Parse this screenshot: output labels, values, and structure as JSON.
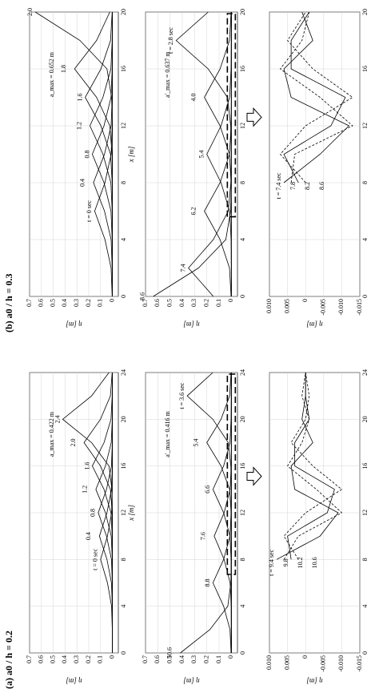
{
  "chart_data": [
    {
      "type": "line",
      "title": "(a) a0 / h = 0.2",
      "xlabel": "x [m]",
      "ylabel": "η [m]",
      "annotation": "a_max = 0.422 m",
      "grid": true,
      "color": "#000000",
      "x": [
        0,
        2,
        4,
        6,
        8,
        10,
        12,
        14,
        16,
        18,
        20,
        22,
        24
      ],
      "xlim": [
        0,
        24
      ],
      "xticks": [
        0,
        4,
        8,
        12,
        16,
        20,
        24
      ],
      "ylim": [
        -0.05,
        0.7
      ],
      "yticks": [
        0,
        0.1,
        0.2,
        0.3,
        0.4,
        0.5,
        0.6,
        0.7
      ],
      "series": [
        {
          "name": "t = 0 sec",
          "values": [
            0,
            0.001,
            0.007,
            0.042,
            0.1,
            0.042,
            0.007,
            0.001,
            0,
            0,
            0,
            0,
            0
          ]
        },
        {
          "name": "0.4",
          "values": [
            0,
            0,
            0.001,
            0.008,
            0.046,
            0.11,
            0.046,
            0.008,
            0.001,
            0,
            0,
            0,
            0
          ]
        },
        {
          "name": "0.8",
          "values": [
            0,
            0,
            0,
            0.001,
            0.008,
            0.05,
            0.12,
            0.05,
            0.008,
            0.001,
            0,
            0,
            0
          ]
        },
        {
          "name": "1.2",
          "values": [
            0,
            0,
            0,
            0,
            0.001,
            0.01,
            0.059,
            0.14,
            0.059,
            0.01,
            0.001,
            0,
            0
          ]
        },
        {
          "name": "1.6",
          "values": [
            0,
            0,
            0,
            0,
            0,
            0.002,
            0.012,
            0.071,
            0.17,
            0.071,
            0.012,
            0.002,
            0
          ]
        },
        {
          "name": "2.0",
          "values": [
            0,
            0,
            0,
            0,
            0,
            0,
            0.002,
            0.017,
            0.101,
            0.24,
            0.101,
            0.017,
            0.002
          ]
        },
        {
          "name": "2.4",
          "values": [
            0,
            0,
            0,
            0,
            0,
            0,
            0,
            0.004,
            0.029,
            0.176,
            0.42,
            0.176,
            0.029
          ]
        }
      ]
    },
    {
      "type": "line",
      "ylabel": "η [m]",
      "annotation": "a'_max = 0.416 m",
      "grid": true,
      "color": "#000000",
      "x": [
        0,
        2,
        4,
        6,
        8,
        10,
        12,
        14,
        16,
        18,
        20,
        22,
        24
      ],
      "xlim": [
        0,
        24
      ],
      "xticks": [
        0,
        4,
        8,
        12,
        16,
        20,
        24
      ],
      "ylim": [
        -0.05,
        0.7
      ],
      "yticks": [
        0,
        0.1,
        0.2,
        0.3,
        0.4,
        0.5,
        0.6,
        0.7
      ],
      "series": [
        {
          "name": "t = 3.6 sec",
          "values": [
            0,
            0,
            0,
            0,
            0,
            0,
            0,
            0,
            0.004,
            0.025,
            0.151,
            0.36,
            0.151
          ]
        },
        {
          "name": "5.4",
          "values": [
            0,
            0,
            0,
            0,
            0,
            0,
            0.002,
            0.014,
            0.084,
            0.2,
            0.084,
            0.014,
            0.002
          ]
        },
        {
          "name": "6.6",
          "values": [
            0,
            0,
            0,
            0,
            0.002,
            0.011,
            0.063,
            0.15,
            0.063,
            0.011,
            0.002,
            0,
            0
          ]
        },
        {
          "name": "7.6",
          "values": [
            0,
            0,
            0.001,
            0.01,
            0.059,
            0.14,
            0.059,
            0.01,
            0.001,
            0,
            0,
            0,
            0
          ]
        },
        {
          "name": "8.8",
          "values": [
            0.002,
            0.011,
            0.063,
            0.15,
            0.063,
            0.011,
            0.002,
            0,
            0,
            0,
            0,
            0,
            0
          ]
        },
        {
          "name": "10.6",
          "values": [
            0.416,
            0.175,
            0.029,
            0.004,
            0,
            0,
            0,
            0,
            0,
            0,
            0,
            0,
            0
          ]
        }
      ]
    },
    {
      "type": "line",
      "ylabel": "η [m]",
      "grid": true,
      "color": "#000000",
      "x": [
        8,
        10,
        12,
        14,
        16,
        18,
        20,
        22,
        24
      ],
      "xlim": [
        0,
        24
      ],
      "xticks": [
        0,
        4,
        8,
        12,
        16,
        20,
        24
      ],
      "ylim": [
        -0.015,
        0.01
      ],
      "yticks": [
        {
          "value": 0.01,
          "label": "0.010"
        },
        0.005,
        0,
        -0.005,
        {
          "value": -0.01,
          "label": "-0.010"
        },
        -0.015
      ],
      "series": [
        {
          "name": "t = 9.4 sec",
          "values": [
            0.008,
            -0.004,
            -0.009,
            0.003,
            0.004,
            -0.002,
            0.001,
            0,
            0
          ]
        },
        {
          "name": "9.8",
          "values": [
            0.006,
            0.002,
            -0.01,
            -0.003,
            0.005,
            0.001,
            -0.001,
            0.001,
            0
          ]
        },
        {
          "name": "10.2",
          "values": [
            0.004,
            0.005,
            -0.006,
            -0.008,
            0.003,
            0.003,
            -0.001,
            0,
            0
          ]
        },
        {
          "name": "10.6",
          "values": [
            0.002,
            0.006,
            0,
            -0.01,
            -0.002,
            0.004,
            0,
            -0.001,
            0
          ]
        }
      ]
    },
    {
      "type": "line",
      "title": "(b) a0 / h = 0.3",
      "xlabel": "x [m]",
      "ylabel": "η [m]",
      "annotation": "a_max = 0.652 m",
      "grid": true,
      "color": "#000000",
      "x": [
        0,
        2,
        4,
        6,
        8,
        10,
        12,
        14,
        16,
        18,
        20
      ],
      "xlim": [
        0,
        20
      ],
      "xticks": [
        0,
        4,
        8,
        12,
        16,
        20
      ],
      "ylim": [
        -0.05,
        0.7
      ],
      "yticks": [
        0,
        0.1,
        0.2,
        0.3,
        0.4,
        0.5,
        0.6,
        0.7
      ],
      "series": [
        {
          "name": "t = 0 sec",
          "values": [
            0.002,
            0.011,
            0.063,
            0.15,
            0.063,
            0.011,
            0.002,
            0,
            0,
            0,
            0
          ]
        },
        {
          "name": "0.4",
          "values": [
            0,
            0.002,
            0.011,
            0.067,
            0.16,
            0.067,
            0.011,
            0.002,
            0,
            0,
            0
          ]
        },
        {
          "name": "0.8",
          "values": [
            0,
            0,
            0.002,
            0.012,
            0.071,
            0.17,
            0.071,
            0.012,
            0.002,
            0,
            0
          ]
        },
        {
          "name": "1.2",
          "values": [
            0,
            0,
            0,
            0.002,
            0.013,
            0.08,
            0.19,
            0.08,
            0.013,
            0.002,
            0
          ]
        },
        {
          "name": "1.6",
          "values": [
            0,
            0,
            0,
            0,
            0.002,
            0.016,
            0.097,
            0.23,
            0.097,
            0.016,
            0.002
          ]
        },
        {
          "name": "1.8",
          "values": [
            0,
            0,
            0,
            0,
            0,
            0.003,
            0.022,
            0.134,
            0.32,
            0.134,
            0.022
          ]
        },
        {
          "name": "2.0",
          "values": [
            0,
            0,
            0,
            0,
            0,
            0,
            0,
            0.007,
            0.046,
            0.274,
            0.652
          ]
        }
      ]
    },
    {
      "type": "line",
      "ylabel": "η [m]",
      "annotation": "a'_max = 0.637 m",
      "grid": true,
      "color": "#000000",
      "x": [
        0,
        2,
        4,
        6,
        8,
        10,
        12,
        14,
        16,
        18,
        20
      ],
      "xlim": [
        0,
        20
      ],
      "xticks": [
        0,
        4,
        8,
        12,
        16,
        20
      ],
      "ylim": [
        -0.05,
        0.7
      ],
      "yticks": [
        0,
        0.1,
        0.2,
        0.3,
        0.4,
        0.5,
        0.6,
        0.7
      ],
      "series": [
        {
          "name": "t = 2.8 sec",
          "values": [
            0,
            0,
            0,
            0,
            0,
            0,
            0.005,
            0.032,
            0.189,
            0.45,
            0.189
          ]
        },
        {
          "name": "4.0",
          "values": [
            0,
            0,
            0,
            0,
            0.002,
            0.015,
            0.092,
            0.22,
            0.092,
            0.015,
            0.002
          ]
        },
        {
          "name": "5.4",
          "values": [
            0,
            0,
            0.002,
            0.014,
            0.084,
            0.2,
            0.084,
            0.014,
            0.002,
            0,
            0
          ]
        },
        {
          "name": "6.2",
          "values": [
            0.002,
            0.015,
            0.092,
            0.22,
            0.092,
            0.015,
            0.002,
            0,
            0,
            0,
            0
          ]
        },
        {
          "name": "7.4",
          "values": [
            0.147,
            0.35,
            0.147,
            0.025,
            0.004,
            0,
            0,
            0,
            0,
            0,
            0
          ]
        },
        {
          "name": "8.6",
          "values": [
            0.637,
            0.268,
            0.045,
            0.006,
            0,
            0,
            0,
            0,
            0,
            0,
            0
          ]
        }
      ]
    },
    {
      "type": "line",
      "ylabel": "η [m]",
      "grid": true,
      "color": "#000000",
      "x": [
        8,
        10,
        12,
        14,
        16,
        18,
        20
      ],
      "xlim": [
        0,
        20
      ],
      "xticks": [
        0,
        4,
        8,
        12,
        16,
        20
      ],
      "ylim": [
        -0.015,
        0.01
      ],
      "yticks": [
        {
          "value": 0.01,
          "label": "0.010"
        },
        0.005,
        0,
        -0.005,
        {
          "value": -0.01,
          "label": "-0.010"
        },
        -0.015
      ],
      "series": [
        {
          "name": "t = 7.4 sec",
          "values": [
            0.006,
            -0.004,
            -0.012,
            0.004,
            0.006,
            -0.002,
            0.001
          ]
        },
        {
          "name": "7.8",
          "values": [
            0.004,
            0.003,
            -0.013,
            -0.004,
            0.007,
            0.001,
            -0.001
          ]
        },
        {
          "name": "8.2",
          "values": [
            0.002,
            0.006,
            -0.007,
            -0.011,
            0.004,
            0.004,
            -0.001
          ]
        },
        {
          "name": "8.6",
          "values": [
            0,
            0.007,
            0,
            -0.013,
            -0.002,
            0.005,
            0
          ]
        }
      ]
    }
  ]
}
